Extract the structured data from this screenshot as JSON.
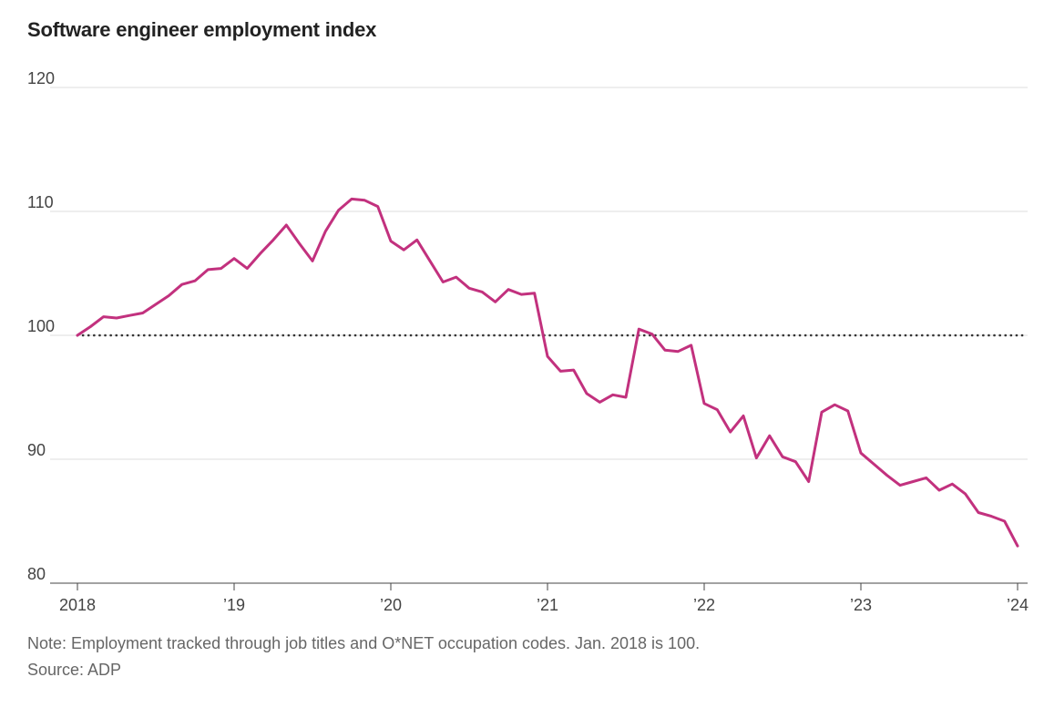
{
  "title": "Software engineer employment index",
  "note": "Note: Employment tracked through job titles and O*NET occupation codes. Jan. 2018 is 100.",
  "source": "Source: ADP",
  "colors": {
    "series": "#c2317e",
    "reference": "#333333",
    "grid": "#dddddd"
  },
  "chart_data": {
    "type": "line",
    "title": "Software engineer employment index",
    "xlabel": "",
    "ylabel": "",
    "ylim": [
      80,
      120
    ],
    "y_ticks": [
      80,
      90,
      100,
      110,
      120
    ],
    "x_range": [
      "2018-01",
      "2024-01"
    ],
    "x_ticks": [
      {
        "date": "2018-01",
        "label": "2018"
      },
      {
        "date": "2019-01",
        "label": "’19"
      },
      {
        "date": "2020-01",
        "label": "’20"
      },
      {
        "date": "2021-01",
        "label": "’21"
      },
      {
        "date": "2022-01",
        "label": "’22"
      },
      {
        "date": "2023-01",
        "label": "’23"
      },
      {
        "date": "2024-01",
        "label": "’24"
      }
    ],
    "grid": true,
    "reference_line": {
      "value": 100,
      "style": "dotted"
    },
    "series": [
      {
        "x": [
          "2018-01",
          "2018-02",
          "2018-03",
          "2018-04",
          "2018-05",
          "2018-06",
          "2018-07",
          "2018-08",
          "2018-09",
          "2018-10",
          "2018-11",
          "2018-12",
          "2019-01",
          "2019-02",
          "2019-03",
          "2019-04",
          "2019-05",
          "2019-06",
          "2019-07",
          "2019-08",
          "2019-09",
          "2019-10",
          "2019-11",
          "2019-12",
          "2020-01",
          "2020-02",
          "2020-03",
          "2020-04",
          "2020-05",
          "2020-06",
          "2020-07",
          "2020-08",
          "2020-09",
          "2020-10",
          "2020-11",
          "2020-12",
          "2021-01",
          "2021-02",
          "2021-03",
          "2021-04",
          "2021-05",
          "2021-06",
          "2021-07",
          "2021-08",
          "2021-09",
          "2021-10",
          "2021-11",
          "2021-12",
          "2022-01",
          "2022-02",
          "2022-03",
          "2022-04",
          "2022-05",
          "2022-06",
          "2022-07",
          "2022-08",
          "2022-09",
          "2022-10",
          "2022-11",
          "2022-12",
          "2023-01",
          "2023-02",
          "2023-03",
          "2023-04",
          "2023-05",
          "2023-06",
          "2023-07",
          "2023-08",
          "2023-09",
          "2023-10",
          "2023-11",
          "2023-12",
          "2024-01"
        ],
        "values": [
          100.0,
          100.7,
          101.5,
          101.4,
          101.6,
          101.8,
          102.5,
          103.2,
          104.1,
          104.4,
          105.3,
          105.4,
          106.2,
          105.4,
          106.6,
          107.7,
          108.9,
          107.4,
          106.0,
          108.4,
          110.1,
          111.0,
          110.9,
          110.4,
          107.6,
          106.9,
          107.7,
          106.0,
          104.3,
          104.7,
          103.8,
          103.5,
          102.7,
          103.7,
          103.3,
          103.4,
          98.3,
          97.1,
          97.2,
          95.3,
          94.6,
          95.2,
          95.0,
          100.5,
          100.1,
          98.8,
          98.7,
          99.2,
          94.5,
          94.0,
          92.2,
          93.5,
          90.1,
          91.9,
          90.2,
          89.8,
          88.2,
          93.8,
          94.4,
          93.9,
          90.5,
          89.6,
          88.7,
          87.9,
          88.2,
          88.5,
          87.5,
          88.0,
          87.2,
          85.7,
          85.4,
          85.0,
          83.0
        ]
      }
    ]
  }
}
